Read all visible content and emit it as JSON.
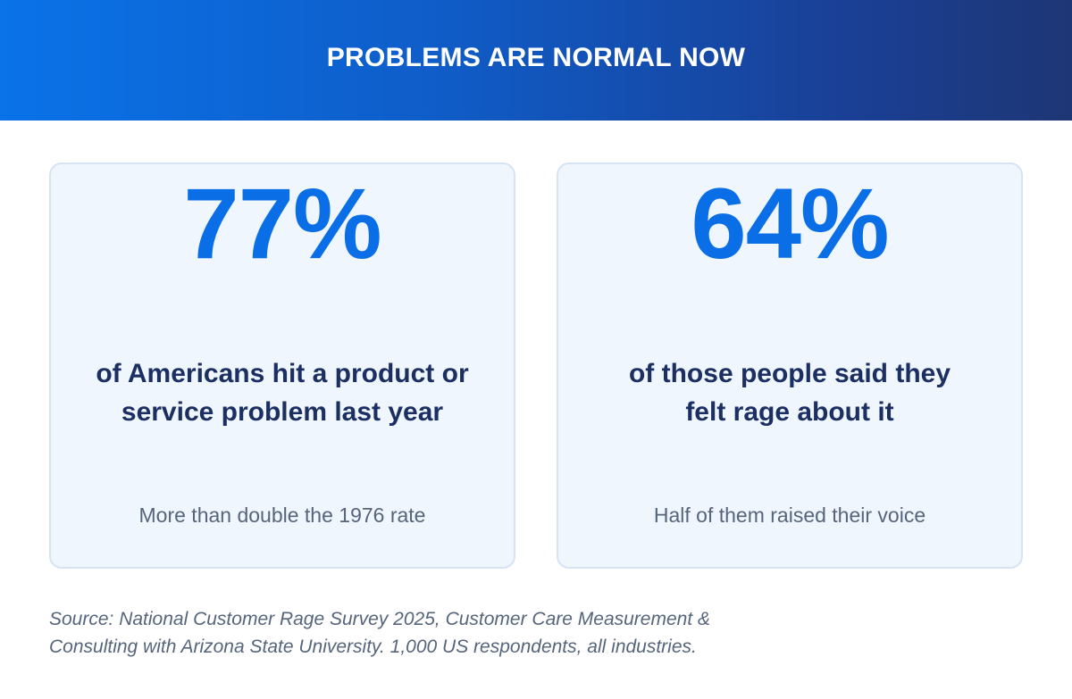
{
  "header": {
    "title": "PROBLEMS ARE NORMAL NOW"
  },
  "cards": [
    {
      "stat": "77%",
      "description_line1": "of Americans hit a product or",
      "description_line2": "service problem last year",
      "note": "More than double the 1976 rate"
    },
    {
      "stat": "64%",
      "description_line1": "of those people said they",
      "description_line2": "felt rage about it",
      "note": "Half of them raised their voice"
    }
  ],
  "source": {
    "line1": "Source: National Customer Rage Survey 2025, Customer Care Measurement &",
    "line2": "Consulting with Arizona State University. 1,000 US respondents, all industries."
  },
  "colors": {
    "accent": "#0a6fe6",
    "heading_text": "#1b2f63",
    "muted_text": "#56657c",
    "card_background": "#f0f6fe"
  }
}
